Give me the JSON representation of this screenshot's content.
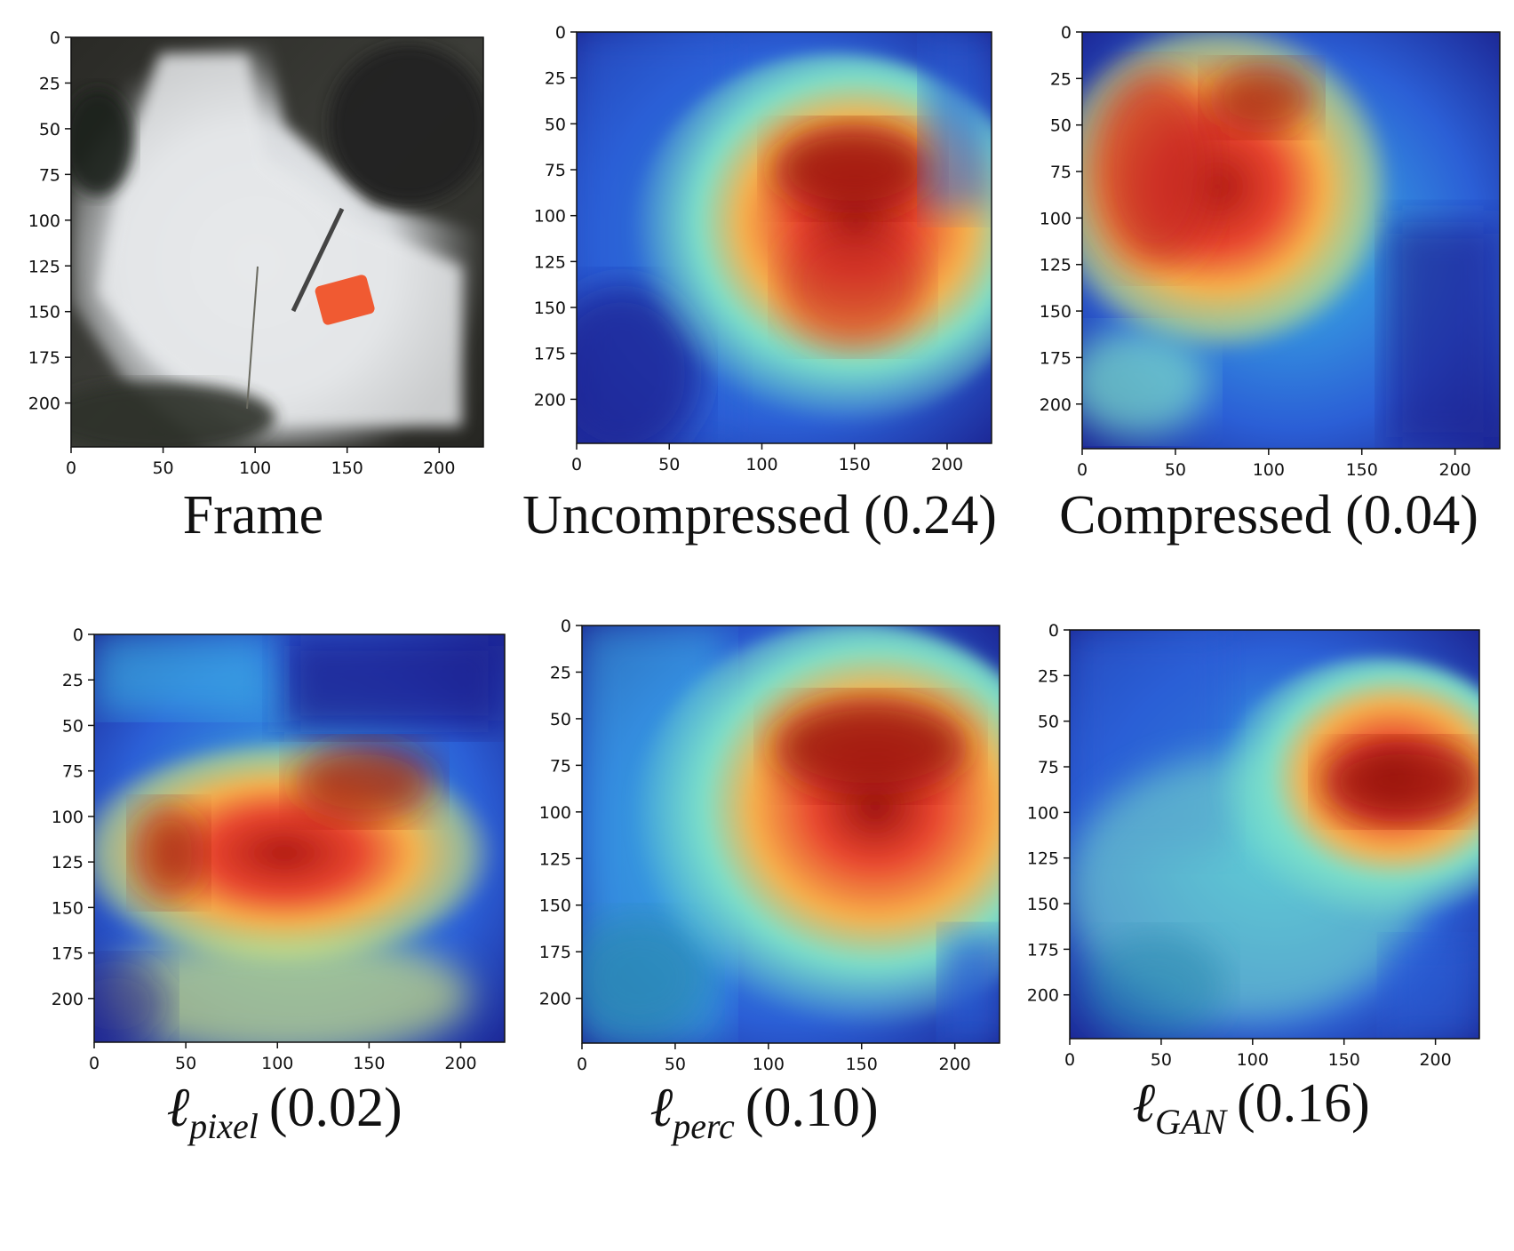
{
  "figure": {
    "panels": [
      {
        "id": "frame",
        "caption": "Frame",
        "kind": "photo"
      },
      {
        "id": "uncompressed",
        "caption": "Uncompressed (0.24)",
        "kind": "heatmap",
        "score": 0.24
      },
      {
        "id": "compressed",
        "caption": "Compressed (0.04)",
        "kind": "heatmap",
        "score": 0.04
      },
      {
        "id": "pixel",
        "caption_symbol": "ℓ",
        "caption_sub": "pixel",
        "caption_score": "(0.02)",
        "kind": "heatmap",
        "score": 0.02
      },
      {
        "id": "perc",
        "caption_symbol": "ℓ",
        "caption_sub": "perc",
        "caption_score": "(0.10)",
        "kind": "heatmap",
        "score": 0.1
      },
      {
        "id": "gan",
        "caption_symbol": "ℓ",
        "caption_sub": "GAN",
        "caption_score": "(0.16)",
        "kind": "heatmap",
        "score": 0.16
      }
    ],
    "axis": {
      "x_ticks": [
        0,
        50,
        100,
        150,
        200
      ],
      "y_ticks": [
        0,
        25,
        50,
        75,
        100,
        125,
        150,
        175,
        200
      ],
      "range": [
        0,
        224
      ]
    },
    "colormap": [
      "#1a1f8c",
      "#2b5fd6",
      "#3cb9e6",
      "#7de0c8",
      "#d7e878",
      "#f7b04a",
      "#e8452f",
      "#9c1210"
    ]
  }
}
